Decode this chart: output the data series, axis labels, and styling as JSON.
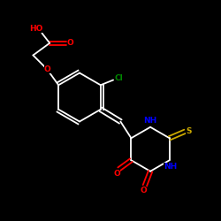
{
  "bg_color": "#000000",
  "bond_color": "#ffffff",
  "atom_colors": {
    "O": "#ff0000",
    "N": "#0000ff",
    "S": "#ccaa00",
    "Cl": "#008800",
    "C": "#ffffff",
    "H": "#ffffff"
  },
  "figsize": [
    2.5,
    2.5
  ],
  "dpi": 100,
  "xlim": [
    0,
    10
  ],
  "ylim": [
    0,
    10
  ]
}
